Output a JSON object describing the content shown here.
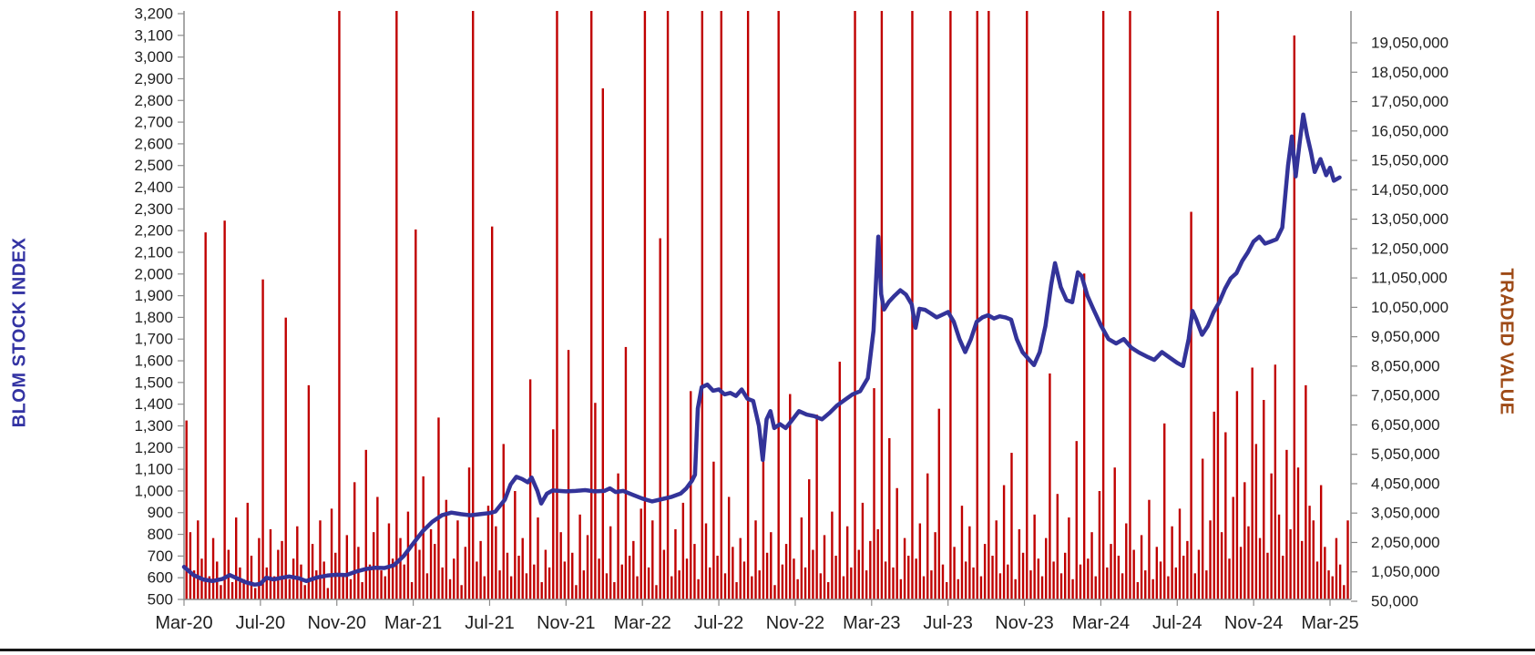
{
  "chart_data": {
    "type": "combo-bar-line",
    "title": "",
    "grid": "off",
    "legend": "none",
    "left_axis": {
      "label": "BLOM STOCK INDEX",
      "color": "#3333A3",
      "range": [
        500,
        3200
      ],
      "tick_step": 100,
      "ticks": [
        3200,
        3100,
        3000,
        2900,
        2800,
        2700,
        2600,
        2500,
        2400,
        2300,
        2200,
        2100,
        2000,
        1900,
        1800,
        1700,
        1600,
        1500,
        1400,
        1300,
        1200,
        1100,
        1000,
        900,
        800,
        700,
        600,
        500
      ]
    },
    "right_axis": {
      "label": "TRADED VALUE",
      "color": "#9E4A16",
      "range": [
        50000,
        20050000
      ],
      "tick_step": 1000000,
      "ticks": [
        19050000,
        18050000,
        17050000,
        16050000,
        15050000,
        14050000,
        13050000,
        12050000,
        11050000,
        10050000,
        9050000,
        8050000,
        7050000,
        6050000,
        5050000,
        4050000,
        3050000,
        2050000,
        1050000,
        50000
      ]
    },
    "x_axis": {
      "ticks": [
        "Mar-20",
        "Jul-20",
        "Nov-20",
        "Mar-21",
        "Jul-21",
        "Nov-21",
        "Mar-22",
        "Jul-22",
        "Nov-22",
        "Mar-23",
        "Jul-23",
        "Nov-23",
        "Mar-24",
        "Jul-24",
        "Nov-24",
        "Mar-25"
      ],
      "months_between_ticks": 4,
      "domain_months": [
        0,
        61
      ]
    },
    "series": [
      {
        "name": "BLOM Stock Index",
        "type": "line",
        "axis": "left",
        "color": "#333399",
        "points": [
          [
            0,
            650
          ],
          [
            0.5,
            612
          ],
          [
            1,
            592
          ],
          [
            1.5,
            585
          ],
          [
            2,
            594
          ],
          [
            2.4,
            612
          ],
          [
            2.8,
            596
          ],
          [
            3.2,
            580
          ],
          [
            3.7,
            568
          ],
          [
            4,
            572
          ],
          [
            4.3,
            600
          ],
          [
            4.7,
            592
          ],
          [
            5,
            598
          ],
          [
            5.5,
            606
          ],
          [
            6,
            598
          ],
          [
            6.4,
            585
          ],
          [
            7,
            602
          ],
          [
            7.5,
            610
          ],
          [
            8,
            614
          ],
          [
            8.5,
            612
          ],
          [
            9,
            628
          ],
          [
            9.5,
            640
          ],
          [
            10,
            646
          ],
          [
            10.5,
            645
          ],
          [
            11,
            658
          ],
          [
            11.5,
            700
          ],
          [
            12,
            758
          ],
          [
            12.5,
            815
          ],
          [
            13,
            858
          ],
          [
            13.5,
            888
          ],
          [
            14,
            900
          ],
          [
            14.5,
            893
          ],
          [
            15,
            888
          ],
          [
            15.5,
            893
          ],
          [
            16,
            898
          ],
          [
            16.3,
            905
          ],
          [
            16.8,
            960
          ],
          [
            17.1,
            1030
          ],
          [
            17.4,
            1065
          ],
          [
            17.7,
            1055
          ],
          [
            18,
            1040
          ],
          [
            18.2,
            1062
          ],
          [
            18.5,
            1000
          ],
          [
            18.7,
            942
          ],
          [
            19,
            988
          ],
          [
            19.3,
            1002
          ],
          [
            20,
            998
          ],
          [
            20.5,
            1000
          ],
          [
            21,
            1004
          ],
          [
            21.5,
            998
          ],
          [
            22,
            1000
          ],
          [
            22.3,
            1012
          ],
          [
            22.6,
            995
          ],
          [
            23,
            1000
          ],
          [
            23.5,
            982
          ],
          [
            24,
            965
          ],
          [
            24.5,
            952
          ],
          [
            25,
            962
          ],
          [
            25.5,
            972
          ],
          [
            26,
            988
          ],
          [
            26.3,
            1012
          ],
          [
            26.6,
            1048
          ],
          [
            26.75,
            1075
          ],
          [
            26.9,
            1380
          ],
          [
            27.1,
            1478
          ],
          [
            27.4,
            1490
          ],
          [
            27.7,
            1462
          ],
          [
            28,
            1468
          ],
          [
            28.3,
            1445
          ],
          [
            28.6,
            1452
          ],
          [
            28.9,
            1438
          ],
          [
            29.2,
            1468
          ],
          [
            29.5,
            1425
          ],
          [
            29.8,
            1415
          ],
          [
            30.1,
            1300
          ],
          [
            30.3,
            1143
          ],
          [
            30.5,
            1330
          ],
          [
            30.7,
            1368
          ],
          [
            30.9,
            1290
          ],
          [
            31.2,
            1308
          ],
          [
            31.5,
            1290
          ],
          [
            31.8,
            1322
          ],
          [
            32.2,
            1368
          ],
          [
            32.6,
            1352
          ],
          [
            33,
            1345
          ],
          [
            33.4,
            1330
          ],
          [
            33.8,
            1360
          ],
          [
            34.2,
            1395
          ],
          [
            34.6,
            1420
          ],
          [
            35,
            1445
          ],
          [
            35.4,
            1460
          ],
          [
            35.8,
            1520
          ],
          [
            36.1,
            1740
          ],
          [
            36.35,
            2172
          ],
          [
            36.5,
            1907
          ],
          [
            36.65,
            1836
          ],
          [
            36.9,
            1872
          ],
          [
            37.2,
            1900
          ],
          [
            37.5,
            1925
          ],
          [
            37.8,
            1905
          ],
          [
            38.1,
            1860
          ],
          [
            38.3,
            1752
          ],
          [
            38.5,
            1840
          ],
          [
            38.8,
            1835
          ],
          [
            39.1,
            1818
          ],
          [
            39.4,
            1800
          ],
          [
            39.7,
            1812
          ],
          [
            40,
            1825
          ],
          [
            40.3,
            1780
          ],
          [
            40.6,
            1700
          ],
          [
            40.9,
            1640
          ],
          [
            41.2,
            1700
          ],
          [
            41.5,
            1780
          ],
          [
            41.8,
            1800
          ],
          [
            42.1,
            1810
          ],
          [
            42.4,
            1795
          ],
          [
            42.7,
            1805
          ],
          [
            43,
            1800
          ],
          [
            43.3,
            1790
          ],
          [
            43.6,
            1700
          ],
          [
            43.9,
            1640
          ],
          [
            44.2,
            1610
          ],
          [
            44.5,
            1580
          ],
          [
            44.8,
            1640
          ],
          [
            45.1,
            1760
          ],
          [
            45.4,
            1950
          ],
          [
            45.6,
            2050
          ],
          [
            45.9,
            1940
          ],
          [
            46.2,
            1880
          ],
          [
            46.5,
            1870
          ],
          [
            46.8,
            2008
          ],
          [
            47,
            1990
          ],
          [
            47.3,
            1900
          ],
          [
            47.6,
            1840
          ],
          [
            48,
            1764
          ],
          [
            48.4,
            1700
          ],
          [
            48.8,
            1680
          ],
          [
            49.2,
            1700
          ],
          [
            49.6,
            1660
          ],
          [
            50,
            1638
          ],
          [
            50.4,
            1620
          ],
          [
            50.8,
            1604
          ],
          [
            51.2,
            1640
          ],
          [
            51.6,
            1615
          ],
          [
            52,
            1590
          ],
          [
            52.3,
            1576
          ],
          [
            52.6,
            1700
          ],
          [
            52.8,
            1830
          ],
          [
            53,
            1790
          ],
          [
            53.3,
            1720
          ],
          [
            53.6,
            1760
          ],
          [
            53.9,
            1823
          ],
          [
            54.2,
            1870
          ],
          [
            54.5,
            1932
          ],
          [
            54.8,
            1980
          ],
          [
            55.1,
            2004
          ],
          [
            55.4,
            2060
          ],
          [
            55.7,
            2100
          ],
          [
            56,
            2150
          ],
          [
            56.3,
            2172
          ],
          [
            56.6,
            2140
          ],
          [
            56.9,
            2150
          ],
          [
            57.2,
            2160
          ],
          [
            57.5,
            2214
          ],
          [
            57.8,
            2500
          ],
          [
            58,
            2634
          ],
          [
            58.2,
            2450
          ],
          [
            58.4,
            2600
          ],
          [
            58.6,
            2735
          ],
          [
            58.8,
            2640
          ],
          [
            59,
            2563
          ],
          [
            59.2,
            2470
          ],
          [
            59.5,
            2530
          ],
          [
            59.8,
            2455
          ],
          [
            60,
            2490
          ],
          [
            60.2,
            2430
          ],
          [
            60.5,
            2445
          ]
        ]
      },
      {
        "name": "Traded Value",
        "type": "bar",
        "axis": "right",
        "color": "#C00000",
        "unit": "millions",
        "bars_per_month": 5,
        "values": [
          6.2,
          2.4,
          1.1,
          2.8,
          1.5,
          12.6,
          0.9,
          2.2,
          1.4,
          0.6,
          13.0,
          1.8,
          0.7,
          2.9,
          1.2,
          0.8,
          3.4,
          1.6,
          0.5,
          2.2,
          11.0,
          1.2,
          2.5,
          0.9,
          1.8,
          2.1,
          9.7,
          0.8,
          1.5,
          2.6,
          1.3,
          0.6,
          7.4,
          2.0,
          1.1,
          2.8,
          1.4,
          0.5,
          3.2,
          1.7,
          20.2,
          1.0,
          2.3,
          0.8,
          4.1,
          1.9,
          0.7,
          5.2,
          1.3,
          2.4,
          3.6,
          1.1,
          0.9,
          2.7,
          1.5,
          20.2,
          2.2,
          1.3,
          3.1,
          0.7,
          12.7,
          1.8,
          4.3,
          1.0,
          2.5,
          2.0,
          6.3,
          1.2,
          3.5,
          0.8,
          1.5,
          2.8,
          0.6,
          1.9,
          4.6,
          20.2,
          1.4,
          2.1,
          0.9,
          3.3,
          12.8,
          2.6,
          1.1,
          5.4,
          1.7,
          0.9,
          3.8,
          1.6,
          2.2,
          1.0,
          7.6,
          1.3,
          2.9,
          0.7,
          1.8,
          1.2,
          5.9,
          20.2,
          2.4,
          1.4,
          8.6,
          1.7,
          0.6,
          3.0,
          1.1,
          2.3,
          20.2,
          6.8,
          1.5,
          17.5,
          1.0,
          2.6,
          0.7,
          4.4,
          1.3,
          8.7,
          1.6,
          2.1,
          0.9,
          3.2,
          20.2,
          1.2,
          2.8,
          0.6,
          12.4,
          1.8,
          20.2,
          0.9,
          2.5,
          1.1,
          3.4,
          1.5,
          7.2,
          2.0,
          0.8,
          20.2,
          2.7,
          1.2,
          4.8,
          1.6,
          20.2,
          1.0,
          3.6,
          1.9,
          0.7,
          2.2,
          1.4,
          20.2,
          0.9,
          2.8,
          1.1,
          5.3,
          1.7,
          2.4,
          0.6,
          20.2,
          1.3,
          2.0,
          7.1,
          1.5,
          0.8,
          2.9,
          1.2,
          4.2,
          1.8,
          6.4,
          1.0,
          2.3,
          0.7,
          3.1,
          1.6,
          8.2,
          0.9,
          2.6,
          1.2,
          20.2,
          1.8,
          3.4,
          1.1,
          2.1,
          7.3,
          2.5,
          20.2,
          1.4,
          5.6,
          1.2,
          3.9,
          0.8,
          2.2,
          1.6,
          20.2,
          1.5,
          2.7,
          0.9,
          4.4,
          1.1,
          2.4,
          6.6,
          1.3,
          0.7,
          20.2,
          1.9,
          0.8,
          3.3,
          1.4,
          2.6,
          1.2,
          20.2,
          0.9,
          2.0,
          20.2,
          1.6,
          2.8,
          1.0,
          4.0,
          1.3,
          5.1,
          0.8,
          2.5,
          1.7,
          20.2,
          1.1,
          3.0,
          1.5,
          0.9,
          2.2,
          7.8,
          1.4,
          3.7,
          1.0,
          1.7,
          2.9,
          0.8,
          5.5,
          1.3,
          11.2,
          1.5,
          2.4,
          0.9,
          3.8,
          20.2,
          1.2,
          2.0,
          4.6,
          1.6,
          1.0,
          2.7,
          20.2,
          1.8,
          0.7,
          2.3,
          1.1,
          3.5,
          0.8,
          1.9,
          1.4,
          6.1,
          0.9,
          2.6,
          1.2,
          3.2,
          1.6,
          2.1,
          13.3,
          1.0,
          1.8,
          4.9,
          1.1,
          2.8,
          6.5,
          20.2,
          2.4,
          5.8,
          1.5,
          3.6,
          7.2,
          1.9,
          4.1,
          2.6,
          8.0,
          5.4,
          2.2,
          6.9,
          1.7,
          4.4,
          8.1,
          3.0,
          1.6,
          5.2,
          2.5,
          19.3,
          4.6,
          2.1,
          7.4,
          3.3,
          2.8,
          1.4,
          4.0,
          1.9,
          1.1,
          0.9,
          2.2,
          1.3,
          0.6,
          2.8
        ]
      }
    ],
    "style": {
      "bar_color": "#C00000",
      "line_color": "#333399",
      "axis_line_color": "#8C8C8C",
      "tick_text_color": "#1F1F1F",
      "bottom_rule_color": "#161616"
    }
  }
}
